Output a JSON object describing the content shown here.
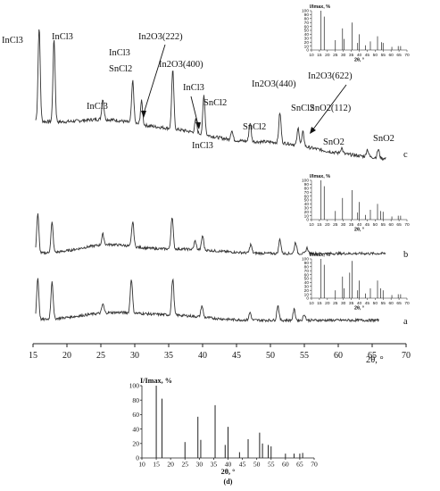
{
  "chart_data": [
    {
      "type": "line",
      "panel": "main",
      "xlabel": "2θ, °",
      "xlim": [
        15,
        70
      ],
      "x_ticks": [
        "15",
        "20",
        "25",
        "30",
        "35",
        "40",
        "45",
        "50",
        "55",
        "60",
        "65",
        "70"
      ],
      "series": [
        {
          "name": "c",
          "label": "c",
          "baseline": 0.0,
          "peaks": [
            [
              15.9,
              1.0
            ],
            [
              18.1,
              0.88
            ],
            [
              25.3,
              0.22
            ],
            [
              29.7,
              0.45
            ],
            [
              31.0,
              0.25
            ],
            [
              35.6,
              0.62
            ],
            [
              39.0,
              0.14
            ],
            [
              40.2,
              0.42
            ],
            [
              44.3,
              0.1
            ],
            [
              47.0,
              0.2
            ],
            [
              51.4,
              0.32
            ],
            [
              54.1,
              0.18
            ],
            [
              54.8,
              0.15
            ],
            [
              60.5,
              0.06
            ],
            [
              64.3,
              0.08
            ],
            [
              65.9,
              0.09
            ]
          ]
        },
        {
          "name": "b",
          "label": "b",
          "baseline": 0.0,
          "peaks": [
            [
              15.7,
              0.55
            ],
            [
              17.8,
              0.42
            ],
            [
              25.3,
              0.15
            ],
            [
              29.7,
              0.35
            ],
            [
              35.5,
              0.45
            ],
            [
              38.9,
              0.12
            ],
            [
              40.0,
              0.2
            ],
            [
              47.1,
              0.12
            ],
            [
              51.4,
              0.2
            ],
            [
              53.7,
              0.16
            ],
            [
              55.4,
              0.08
            ]
          ]
        },
        {
          "name": "a",
          "label": "a",
          "baseline": 0.0,
          "peaks": [
            [
              15.7,
              0.55
            ],
            [
              17.8,
              0.5
            ],
            [
              25.3,
              0.12
            ],
            [
              29.5,
              0.45
            ],
            [
              35.6,
              0.48
            ],
            [
              39.9,
              0.15
            ],
            [
              47.0,
              0.1
            ],
            [
              51.1,
              0.2
            ],
            [
              53.5,
              0.14
            ],
            [
              55.0,
              0.08
            ]
          ]
        }
      ],
      "annotations": [
        {
          "text": "InCl3",
          "series": "c",
          "x": 15.9
        },
        {
          "text": "InCl3",
          "series": "c",
          "x": 18.1
        },
        {
          "text": "InCl3",
          "series": "c",
          "x": 25.3
        },
        {
          "text": "InCl3",
          "series": "c",
          "x": 29.7
        },
        {
          "text": "SnCl2",
          "series": "c",
          "x": 29.7
        },
        {
          "text": "In2O3(222)",
          "series": "c",
          "x": 31.0
        },
        {
          "text": "In2O3(400)",
          "series": "c",
          "x": 35.6
        },
        {
          "text": "InCl3",
          "series": "c",
          "x": 39.0
        },
        {
          "text": "SnCl2",
          "series": "c",
          "x": 40.2
        },
        {
          "text": "InCl3",
          "series": "c",
          "x": 44.3
        },
        {
          "text": "SnCl2",
          "series": "c",
          "x": 47.0
        },
        {
          "text": "In2O3(440)",
          "series": "c",
          "x": 51.4
        },
        {
          "text": "SnCl2",
          "series": "c",
          "x": 54.1
        },
        {
          "text": "In2O3(622)",
          "series": "c",
          "x": 54.8
        },
        {
          "text": "SnO2(112)",
          "series": "c",
          "x": 64.3
        },
        {
          "text": "SnO2",
          "series": "c",
          "x": 60.5
        },
        {
          "text": "SnO2",
          "series": "c",
          "x": 65.9
        }
      ]
    },
    {
      "type": "bar",
      "panel": "inset-c",
      "ylabel": "I/Imax, %",
      "xlabel": "2θ, °",
      "xlim": [
        10,
        70
      ],
      "ylim": [
        0,
        100
      ],
      "x_ticks": [
        "10",
        "15",
        "20",
        "25",
        "30",
        "35",
        "40",
        "45",
        "50",
        "55",
        "60",
        "65",
        "70"
      ],
      "y_ticks": [
        "0",
        "10",
        "20",
        "30",
        "40",
        "50",
        "60",
        "70",
        "80",
        "90",
        "100"
      ],
      "x": [
        16,
        18,
        25,
        29.5,
        30.5,
        35.5,
        39,
        40,
        44,
        47,
        51.5,
        54,
        55,
        60.5,
        64.5,
        66
      ],
      "values": [
        100,
        85,
        25,
        55,
        28,
        70,
        18,
        40,
        12,
        22,
        35,
        20,
        18,
        8,
        10,
        10
      ]
    },
    {
      "type": "bar",
      "panel": "inset-b",
      "ylabel": "I/Imax, %",
      "xlabel": "2θ, °",
      "xlim": [
        10,
        70
      ],
      "ylim": [
        0,
        100
      ],
      "x_ticks": [
        "10",
        "15",
        "20",
        "25",
        "30",
        "35",
        "40",
        "45",
        "50",
        "55",
        "60",
        "65",
        "70"
      ],
      "y_ticks": [
        "0",
        "10",
        "20",
        "30",
        "40",
        "50",
        "60",
        "70",
        "80",
        "90",
        "100"
      ],
      "x": [
        16,
        18,
        25,
        29.5,
        35.5,
        39,
        40,
        44,
        47,
        51.5,
        53.5,
        55,
        60.5,
        64.5,
        66
      ],
      "values": [
        100,
        85,
        22,
        55,
        75,
        18,
        45,
        12,
        25,
        40,
        22,
        20,
        8,
        10,
        10
      ]
    },
    {
      "type": "bar",
      "panel": "inset-a",
      "ylabel": "I/Imax, %",
      "xlabel": "2θ, °",
      "xlim": [
        10,
        70
      ],
      "ylim": [
        0,
        100
      ],
      "x_ticks": [
        "10",
        "15",
        "20",
        "25",
        "30",
        "35",
        "40",
        "45",
        "50",
        "55",
        "60",
        "65",
        "70"
      ],
      "y_ticks": [
        "0",
        "10",
        "20",
        "30",
        "40",
        "50",
        "60",
        "70",
        "80",
        "90",
        "100"
      ],
      "x": [
        16,
        18,
        25,
        29.5,
        30.5,
        34,
        35.5,
        39,
        40,
        44,
        47,
        51.5,
        53.5,
        55,
        60.5,
        64.5,
        66
      ],
      "values": [
        100,
        85,
        20,
        55,
        25,
        65,
        95,
        20,
        45,
        12,
        25,
        45,
        25,
        20,
        8,
        10,
        10
      ]
    },
    {
      "type": "bar",
      "panel": "d",
      "title": "(d)",
      "ylabel": "I/Imax, %",
      "xlabel": "2θ, °",
      "xlim": [
        10,
        70
      ],
      "ylim": [
        0,
        100
      ],
      "x_ticks": [
        "10",
        "15",
        "20",
        "25",
        "30",
        "35",
        "40",
        "45",
        "50",
        "55",
        "60",
        "65",
        "70"
      ],
      "y_ticks": [
        "0",
        "20",
        "40",
        "60",
        "80",
        "100"
      ],
      "x": [
        15,
        17,
        25,
        29.5,
        30.5,
        35,
        35.5,
        39,
        40,
        44,
        47,
        51,
        52,
        54,
        55,
        60,
        63,
        65,
        66
      ],
      "values": [
        100,
        82,
        22,
        57,
        25,
        0,
        73,
        18,
        43,
        8,
        26,
        35,
        20,
        18,
        16,
        6,
        6,
        6,
        7
      ]
    }
  ]
}
